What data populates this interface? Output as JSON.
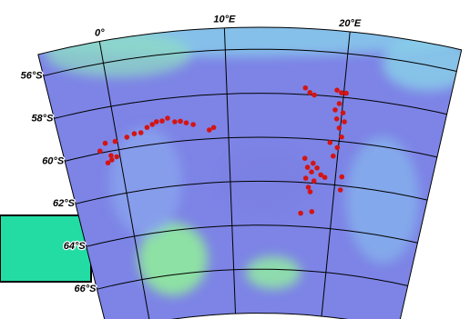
{
  "map": {
    "lonlim": [
      -5,
      29
    ],
    "latlim": [
      -55,
      -68
    ],
    "meridians": [
      {
        "value": 0,
        "label": "0°"
      },
      {
        "value": 10,
        "label": "10°E"
      },
      {
        "value": 20,
        "label": "20°E"
      }
    ],
    "parallels": [
      {
        "value": -56,
        "label": "56°S"
      },
      {
        "value": -58,
        "label": "58°S"
      },
      {
        "value": -60,
        "label": "60°S"
      },
      {
        "value": -62,
        "label": "62°S"
      },
      {
        "value": -64,
        "label": "64°S"
      },
      {
        "value": -66,
        "label": "66°S"
      }
    ],
    "point_color": "#d41414",
    "points": {
      "lon": [
        -1.7,
        -1.1,
        -0.8,
        -0.2,
        -0.8,
        -0.3,
        -1.2,
        0.9,
        1.6,
        2.2,
        2.8,
        3.3,
        3.7,
        4.2,
        4.7,
        5.3,
        5.8,
        6.3,
        6.9,
        8.3,
        8.7,
        16.7,
        17.1,
        17.5,
        19.4,
        19.8,
        20.2,
        19.7,
        19.4,
        20.1,
        19.6,
        20.3,
        19.9,
        20.2,
        19.9,
        19.6,
        19.2,
        17.0,
        17.3,
        17.7,
        18.2,
        18.6,
        18.0,
        17.7,
        17.5,
        19.0,
        20.6,
        16.9,
        18.0,
        20.6,
        17.2,
        17.8
      ],
      "lat": [
        -59.9,
        -59.6,
        -60.2,
        -59.6,
        -60.4,
        -60.3,
        -60.5,
        -59.5,
        -59.4,
        -59.4,
        -59.2,
        -59.1,
        -59.0,
        -59.0,
        -58.9,
        -59.1,
        -59.1,
        -59.2,
        -59.3,
        -59.6,
        -59.5,
        -57.7,
        -57.9,
        -58.0,
        -57.7,
        -57.8,
        -57.8,
        -58.3,
        -58.6,
        -58.7,
        -59.0,
        -59.1,
        -59.4,
        -59.8,
        -60.3,
        -60.7,
        -60.1,
        -60.9,
        -61.3,
        -61.5,
        -61.3,
        -61.6,
        -61.9,
        -62.4,
        -62.2,
        -61.7,
        -61.6,
        -63.4,
        -63.3,
        -62.2,
        -61.8,
        -61.1
      ]
    }
  }
}
